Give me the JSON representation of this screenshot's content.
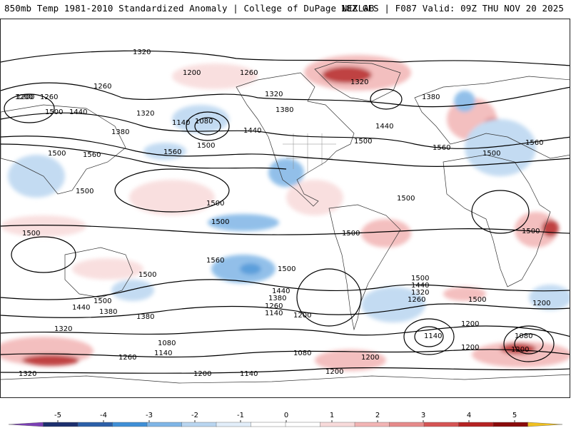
{
  "header": {
    "left": "850mb Temp 1981-2010 Standardized Anomaly | College of DuPage NEXLAB",
    "right": "18Z GFS | F087 Valid: 09Z THU NOV 20 2025"
  },
  "colorbar": {
    "ticks": [
      "-5",
      "-4",
      "-3",
      "-2",
      "-1",
      "0",
      "1",
      "2",
      "3",
      "4",
      "5"
    ],
    "colors": [
      "#7b3fb5",
      "#1c2f6e",
      "#2b5fa8",
      "#3f8fd6",
      "#7fb5e6",
      "#b9d5f0",
      "#e2eefa",
      "#ffffff",
      "#ffffff",
      "#f8dada",
      "#f2b4b4",
      "#e68a8a",
      "#d55454",
      "#b52222",
      "#8a0a0a",
      "#f0c020"
    ]
  },
  "contour_labels": [
    "1320",
    "1200",
    "1260",
    "1200",
    "1260",
    "1260",
    "1320",
    "1380",
    "1320",
    "1380",
    "1200",
    "1500",
    "1440",
    "1320",
    "1140",
    "1080",
    "1380",
    "1440",
    "1440",
    "1500",
    "1500",
    "1560",
    "1560",
    "1500",
    "1560",
    "1560",
    "1500",
    "1500",
    "1500",
    "1500",
    "1500",
    "1500",
    "1500",
    "1500",
    "1500",
    "1560",
    "1500",
    "1500",
    "1440",
    "1380",
    "1260",
    "1140",
    "1200",
    "1440",
    "1380",
    "1320",
    "1260",
    "1500",
    "1200",
    "1500",
    "1440",
    "1380",
    "1200",
    "1320",
    "1140",
    "1080",
    "1200",
    "1080",
    "1260",
    "1200",
    "1320",
    "1200",
    "1140",
    "1200",
    "1080",
    "1200",
    "1140"
  ],
  "colors": {
    "warm": "#d55454",
    "cold": "#3f8fd6",
    "contour": "#000000"
  }
}
